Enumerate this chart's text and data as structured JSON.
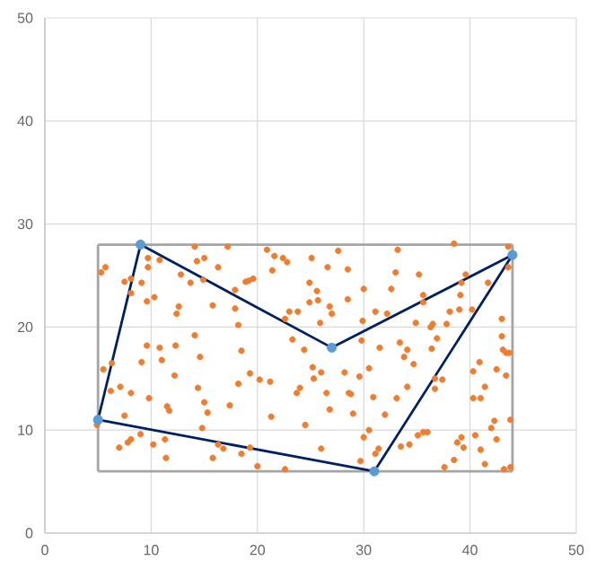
{
  "chart_data": {
    "type": "scatter",
    "xlim": [
      0,
      50
    ],
    "ylim": [
      0,
      50
    ],
    "xticks": [
      0,
      10,
      20,
      30,
      40,
      50
    ],
    "yticks": [
      0,
      10,
      20,
      30,
      40,
      50
    ],
    "grid": true,
    "series": [
      {
        "marker": "circle",
        "color": "#ed7d31",
        "x": [
          5.3,
          5.7,
          5.5,
          6.3,
          6.2,
          4.9,
          7,
          7.1,
          7.5,
          7.8,
          8.1,
          7.5,
          8.1,
          8.1,
          8.1,
          9.1,
          9.1,
          9,
          9.7,
          9.7,
          9.6,
          9.6,
          9.8,
          10.2,
          10.3,
          10.8,
          10.8,
          11,
          11.3,
          11.5,
          11.7,
          11.4,
          12.3,
          12.2,
          12.4,
          12.6,
          12.8,
          13.7,
          14.1,
          14.3,
          15,
          14.9,
          14.1,
          14.4,
          14.6,
          15,
          15.3,
          14.8,
          15.8,
          15.8,
          16.3,
          16.3,
          16.8,
          17.2,
          17.4,
          17.9,
          17.9,
          18.2,
          18.5,
          18.2,
          18.5,
          19.3,
          18.9,
          19.2,
          19.6,
          19.3,
          20.2,
          20,
          20.9,
          21.6,
          21.4,
          21.2,
          21.3,
          22.4,
          22.8,
          22.6,
          23,
          23.3,
          23.8,
          23.7,
          24,
          24.4,
          24.5,
          22.6,
          25.1,
          24.9,
          24.9,
          25.6,
          25.7,
          25.9,
          26,
          25.2,
          25.3,
          26,
          26.5,
          26.6,
          26.8,
          26.8,
          27,
          27.6,
          28.2,
          28.5,
          28.5,
          28.6,
          28.8,
          29,
          29.6,
          29.9,
          29.8,
          30,
          29.7,
          30,
          30.5,
          30.5,
          30.9,
          31.1,
          31.1,
          31.4,
          31.5,
          32,
          32.2,
          32.6,
          33,
          33.2,
          33.1,
          33.4,
          33.5,
          33.8,
          34.1,
          34.1,
          34.3,
          34.7,
          34.9,
          35.2,
          35.6,
          35.6,
          35.1,
          35.6,
          36,
          36.3,
          36.5,
          36.4,
          36.7,
          36.7,
          36.9,
          37.4,
          37.6,
          37.8,
          38.1,
          38.5,
          38.5,
          38.8,
          39,
          39.1,
          39.2,
          39.2,
          39.4,
          39.6,
          40.2,
          40.3,
          40.3,
          40.5,
          40.9,
          41,
          41,
          41.4,
          41.4,
          41.7,
          42,
          42.3,
          42.5,
          42.5,
          43,
          43,
          43.1,
          43.4,
          43.4,
          43.6,
          43.6,
          43.7,
          43.8,
          43.2,
          43.8
        ],
        "values": [
          25.3,
          25.8,
          15.9,
          16.5,
          13.8,
          10.5,
          8.3,
          14.2,
          11.4,
          8.8,
          9.1,
          24.4,
          24.7,
          23.3,
          13.6,
          24.3,
          16.6,
          9.6,
          26.7,
          25.8,
          22.5,
          18.2,
          13.1,
          8.6,
          22.9,
          26.5,
          18,
          16.8,
          9.1,
          12.3,
          11.9,
          7.3,
          18.2,
          15.3,
          21.3,
          22,
          25.1,
          24.3,
          27.8,
          26.4,
          26.7,
          24.6,
          19.2,
          14.1,
          17.1,
          12.7,
          11.7,
          10.2,
          22.1,
          7.3,
          25.8,
          8.6,
          8.2,
          27.8,
          12.4,
          23.6,
          21.8,
          20.2,
          17.7,
          14.5,
          7.7,
          8.3,
          24.4,
          24.5,
          24.7,
          15.5,
          14.9,
          6.5,
          27.5,
          26.9,
          25.5,
          14.7,
          11.3,
          26.7,
          26.3,
          20.8,
          21.5,
          18.8,
          21.5,
          13.6,
          14.1,
          17.8,
          10.5,
          6.2,
          26.7,
          24.3,
          22.4,
          23.5,
          22.6,
          20.4,
          15.6,
          16.1,
          15,
          8.2,
          13.6,
          25.8,
          22,
          12,
          21.3,
          27.4,
          15.6,
          25.6,
          22.7,
          13.6,
          13.5,
          11.6,
          15.2,
          20.6,
          18.7,
          23.7,
          7,
          9.3,
          10,
          16,
          13.2,
          21.5,
          7.7,
          8.2,
          18,
          11.5,
          21.3,
          23.7,
          25.3,
          27.5,
          13.1,
          18.5,
          8.4,
          17.1,
          17.8,
          14.2,
          8.6,
          16.4,
          20.4,
          25.1,
          23.1,
          22.4,
          9.5,
          9.8,
          9.8,
          20,
          20.3,
          17.9,
          15,
          14,
          18.9,
          14.9,
          6.4,
          20.3,
          21.5,
          7.1,
          28.1,
          8.8,
          21.7,
          23.1,
          24.3,
          9.3,
          8.3,
          25.1,
          21.7,
          15.7,
          13.1,
          9.5,
          16.6,
          13.1,
          8.1,
          14.2,
          6.7,
          24.3,
          10.2,
          10.9,
          15.9,
          9.1,
          19.1,
          20.8,
          17.8,
          17.5,
          15.3,
          27.8,
          25.8,
          17.5,
          11,
          6.2,
          6.4
        ]
      },
      {
        "type": "line",
        "marker": "none",
        "color": "#a5a5a5",
        "x": [
          5,
          44
        ],
        "values": [
          6,
          6
        ]
      },
      {
        "type": "line",
        "marker": "none",
        "color": "#a5a5a5",
        "x": [
          44,
          44
        ],
        "values": [
          6,
          28
        ]
      },
      {
        "type": "line",
        "marker": "none",
        "color": "#a5a5a5",
        "x": [
          5,
          44
        ],
        "values": [
          28,
          28
        ]
      },
      {
        "type": "line",
        "marker": "none",
        "color": "#a5a5a5",
        "x": [
          5,
          5
        ],
        "values": [
          6,
          28
        ]
      },
      {
        "type": "line",
        "marker": "none",
        "color": "#002060",
        "x": [
          5,
          9
        ],
        "values": [
          11,
          28
        ]
      },
      {
        "type": "line",
        "marker": "none",
        "color": "#002060",
        "x": [
          9,
          27
        ],
        "values": [
          28,
          18
        ]
      },
      {
        "type": "line",
        "marker": "none",
        "color": "#002060",
        "x": [
          27,
          44
        ],
        "values": [
          18,
          27
        ]
      },
      {
        "type": "line",
        "marker": "none",
        "color": "#002060",
        "x": [
          31,
          44
        ],
        "values": [
          6,
          27
        ]
      },
      {
        "type": "line",
        "marker": "none",
        "color": "#002060",
        "x": [
          5,
          31
        ],
        "values": [
          11,
          6
        ]
      },
      {
        "marker": "circle",
        "color": "#5b9bd5",
        "x": [
          5,
          9,
          27,
          44,
          31
        ],
        "values": [
          11,
          28,
          18,
          27,
          6
        ]
      }
    ]
  }
}
